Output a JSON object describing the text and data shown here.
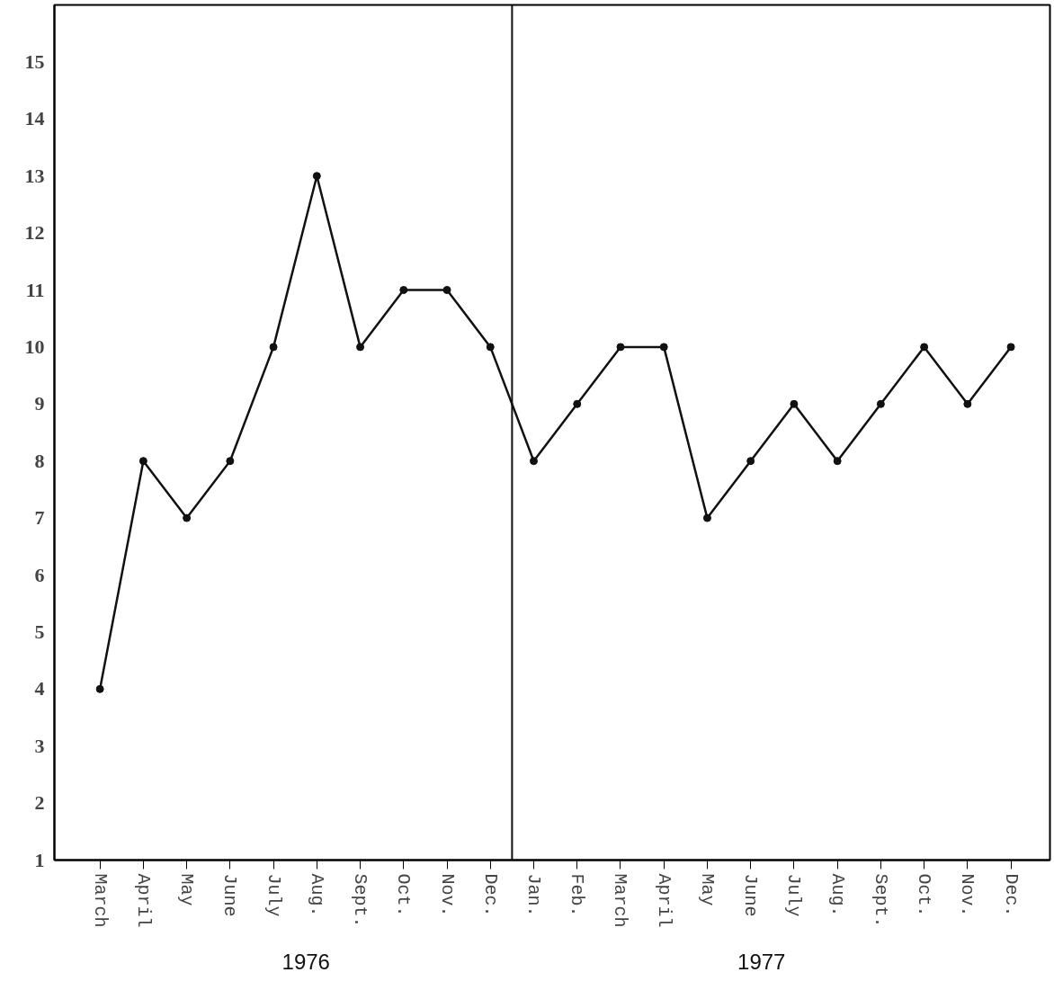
{
  "chart_data": {
    "type": "line",
    "categories": [
      "March",
      "April",
      "May",
      "June",
      "July",
      "Aug.",
      "Sept.",
      "Oct.",
      "Nov.",
      "Dec.",
      "Jan.",
      "Feb.",
      "March",
      "April",
      "May",
      "June",
      "July",
      "Aug.",
      "Sept.",
      "Oct.",
      "Nov.",
      "Dec."
    ],
    "series": [
      {
        "color": "#111111",
        "values": [
          4,
          8,
          7,
          8,
          10,
          13,
          10,
          11,
          11,
          10,
          8,
          9,
          10,
          10,
          7,
          8,
          9,
          8,
          9,
          10,
          9,
          10
        ]
      }
    ],
    "ylim": [
      1,
      16
    ],
    "yticks": [
      1,
      2,
      3,
      4,
      5,
      6,
      7,
      8,
      9,
      10,
      11,
      12,
      13,
      14,
      15
    ],
    "marker": "circle",
    "line_style": "solid",
    "grid": false,
    "annotations": [
      "1976",
      "1977"
    ]
  }
}
